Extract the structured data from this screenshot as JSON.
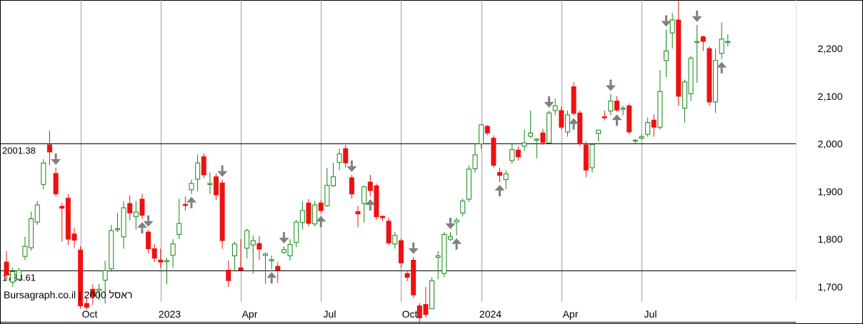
{
  "chart_data": {
    "type": "candlestick",
    "watermark": "Bursagraph.co.il | 2000 ראסל",
    "colors": {
      "up": "#118811",
      "down": "#ee1111",
      "grid": "#a0a0a0",
      "level": "#000000",
      "arrow": "#808080"
    },
    "ylim": [
      1622,
      2302
    ],
    "y_ticks": [
      {
        "value": 1700,
        "label": "1,700"
      },
      {
        "value": 1800,
        "label": "1,800"
      },
      {
        "value": 1900,
        "label": "1,900"
      },
      {
        "value": 2000,
        "label": "2,000"
      },
      {
        "value": 2100,
        "label": "2,100"
      },
      {
        "value": 2200,
        "label": "2,200"
      }
    ],
    "x_ticks": [
      {
        "index": 12,
        "label": "Oct"
      },
      {
        "index": 25,
        "label": "2023"
      },
      {
        "index": 38,
        "label": "Apr"
      },
      {
        "index": 51,
        "label": "Jul"
      },
      {
        "index": 64,
        "label": "Oct"
      },
      {
        "index": 77,
        "label": "2024"
      },
      {
        "index": 90,
        "label": "Apr"
      },
      {
        "index": 103,
        "label": "Jul"
      }
    ],
    "levels": [
      {
        "value": 2001.38,
        "label": "2001.38"
      },
      {
        "value": 1733.61,
        "label": "1733.61"
      },
      {
        "value": 1626,
        "label": ""
      }
    ],
    "candles": [
      [
        1752,
        1725,
        1775,
        1715
      ],
      [
        1710,
        1732,
        1740,
        1700
      ],
      [
        1716,
        1734,
        1740,
        1712
      ],
      [
        1764,
        1785,
        1805,
        1756
      ],
      [
        1782,
        1843,
        1858,
        1776
      ],
      [
        1836,
        1872,
        1880,
        1830
      ],
      [
        1915,
        1960,
        1968,
        1905
      ],
      [
        1998,
        1983,
        2028,
        1955
      ],
      [
        1938,
        1895,
        1950,
        1890
      ],
      [
        1869,
        1865,
        1876,
        1795
      ],
      [
        1886,
        1800,
        1895,
        1788
      ],
      [
        1811,
        1798,
        1824,
        1782
      ],
      [
        1777,
        1660,
        1785,
        1654
      ],
      [
        1665,
        1657,
        1678,
        1652
      ],
      [
        1695,
        1680,
        1705,
        1662
      ],
      [
        1692,
        1695,
        1706,
        1672
      ],
      [
        1714,
        1734,
        1755,
        1665
      ],
      [
        1738,
        1818,
        1830,
        1732
      ],
      [
        1821,
        1822,
        1855,
        1815
      ],
      [
        1805,
        1866,
        1880,
        1780
      ],
      [
        1875,
        1855,
        1892,
        1840
      ],
      [
        1847,
        1857,
        1880,
        1820
      ],
      [
        1884,
        1850,
        1895,
        1842
      ],
      [
        1815,
        1780,
        1820,
        1770
      ],
      [
        1780,
        1760,
        1790,
        1752
      ],
      [
        1756,
        1752,
        1780,
        1740
      ],
      [
        1753,
        1755,
        1760,
        1705
      ],
      [
        1766,
        1790,
        1800,
        1740
      ],
      [
        1810,
        1833,
        1885,
        1800
      ],
      [
        1873,
        1872,
        1890,
        1860
      ],
      [
        1904,
        1917,
        1925,
        1895
      ],
      [
        1926,
        1960,
        1978,
        1900
      ],
      [
        1973,
        1935,
        1980,
        1928
      ],
      [
        1916,
        1917,
        1940,
        1895
      ],
      [
        1931,
        1893,
        1938,
        1882
      ],
      [
        1918,
        1797,
        1925,
        1780
      ],
      [
        1735,
        1713,
        1755,
        1700
      ],
      [
        1765,
        1790,
        1795,
        1735
      ],
      [
        1740,
        1735,
        1800,
        1740
      ],
      [
        1781,
        1818,
        1822,
        1760
      ],
      [
        1788,
        1797,
        1808,
        1728
      ],
      [
        1791,
        1779,
        1806,
        1757
      ],
      [
        1766,
        1769,
        1772,
        1706
      ],
      [
        1755,
        1757,
        1766,
        1737
      ],
      [
        1743,
        1735,
        1752,
        1708
      ],
      [
        1772,
        1778,
        1785,
        1770
      ],
      [
        1765,
        1789,
        1800,
        1755
      ],
      [
        1793,
        1836,
        1840,
        1783
      ],
      [
        1835,
        1860,
        1880,
        1820
      ],
      [
        1876,
        1833,
        1884,
        1827
      ],
      [
        1832,
        1872,
        1880,
        1827
      ],
      [
        1876,
        1860,
        1882,
        1855
      ],
      [
        1870,
        1913,
        1950,
        1868
      ],
      [
        1912,
        1931,
        1960,
        1910
      ],
      [
        1961,
        1979,
        1990,
        1945
      ],
      [
        1990,
        1960,
        1998,
        1950
      ],
      [
        1929,
        1895,
        1935,
        1885
      ],
      [
        1858,
        1853,
        1870,
        1825
      ],
      [
        1875,
        1910,
        1912,
        1835
      ],
      [
        1920,
        1902,
        1935,
        1890
      ],
      [
        1912,
        1847,
        1916,
        1840
      ],
      [
        1848,
        1845,
        1850,
        1838
      ],
      [
        1838,
        1792,
        1845,
        1788
      ],
      [
        1790,
        1808,
        1815,
        1780
      ],
      [
        1797,
        1750,
        1802,
        1740
      ],
      [
        1728,
        1720,
        1734,
        1712
      ],
      [
        1756,
        1683,
        1763,
        1676
      ],
      [
        1660,
        1635,
        1666,
        1624
      ],
      [
        1663,
        1642,
        1700,
        1636
      ],
      [
        1654,
        1713,
        1720,
        1700
      ],
      [
        1762,
        1765,
        1775,
        1716
      ],
      [
        1728,
        1810,
        1815,
        1720
      ],
      [
        1800,
        1805,
        1815,
        1796
      ],
      [
        1836,
        1840,
        1845,
        1808
      ],
      [
        1855,
        1880,
        1885,
        1848
      ],
      [
        1884,
        1947,
        1955,
        1878
      ],
      [
        1948,
        1977,
        2000,
        1940
      ],
      [
        2000,
        2040,
        2040,
        1990
      ],
      [
        2037,
        2023,
        2040,
        2018
      ],
      [
        2012,
        1955,
        2018,
        1950
      ],
      [
        1940,
        1934,
        1950,
        1920
      ],
      [
        1925,
        1937,
        1945,
        1905
      ],
      [
        1965,
        1988,
        2000,
        1958
      ],
      [
        1987,
        1973,
        1995,
        1965
      ],
      [
        1995,
        2002,
        2030,
        1985
      ],
      [
        2016,
        2023,
        2070,
        2012
      ],
      [
        2008,
        2010,
        2012,
        1970
      ],
      [
        2023,
        2003,
        2032,
        1998
      ],
      [
        2002,
        2065,
        2070,
        2000
      ],
      [
        2070,
        2080,
        2095,
        2060
      ],
      [
        2070,
        2035,
        2078,
        2030
      ],
      [
        2025,
        2061,
        2070,
        2015
      ],
      [
        2120,
        2064,
        2130,
        2060
      ],
      [
        2065,
        2000,
        2070,
        1995
      ],
      [
        1998,
        1945,
        2005,
        1930
      ],
      [
        1950,
        1999,
        2002,
        1940
      ],
      [
        2022,
        2029,
        2030,
        2005
      ],
      [
        2057,
        2056,
        2070,
        2050
      ],
      [
        2069,
        2090,
        2105,
        2060
      ],
      [
        2090,
        2071,
        2100,
        2068
      ],
      [
        2075,
        2075,
        2080,
        2060
      ],
      [
        2080,
        2025,
        2085,
        2020
      ],
      [
        2006,
        2008,
        2010,
        2000
      ],
      [
        2012,
        2015,
        2020,
        2010
      ],
      [
        2020,
        2045,
        2055,
        2015
      ],
      [
        2050,
        2035,
        2062,
        2015
      ],
      [
        2035,
        2110,
        2155,
        2030
      ],
      [
        2175,
        2195,
        2240,
        2140
      ],
      [
        2233,
        2260,
        2275,
        2200
      ],
      [
        2260,
        2100,
        2300,
        2080
      ],
      [
        2075,
        2130,
        2135,
        2045
      ],
      [
        2105,
        2180,
        2185,
        2090
      ],
      [
        2215,
        2215,
        2250,
        2128
      ],
      [
        2225,
        2215,
        2227,
        2195
      ],
      [
        2200,
        2088,
        2205,
        2080
      ],
      [
        2088,
        2175,
        2200,
        2065
      ],
      [
        2190,
        2220,
        2255,
        2178
      ],
      [
        2215,
        2215,
        2230,
        2205
      ]
    ],
    "down_arrows": [
      8,
      23,
      35,
      45,
      56,
      66,
      72,
      88,
      98,
      107,
      112,
      120,
      127,
      134
    ],
    "up_arrows": [
      22,
      30,
      43,
      51,
      59,
      73,
      80,
      92,
      99,
      116,
      127,
      128,
      135
    ]
  }
}
